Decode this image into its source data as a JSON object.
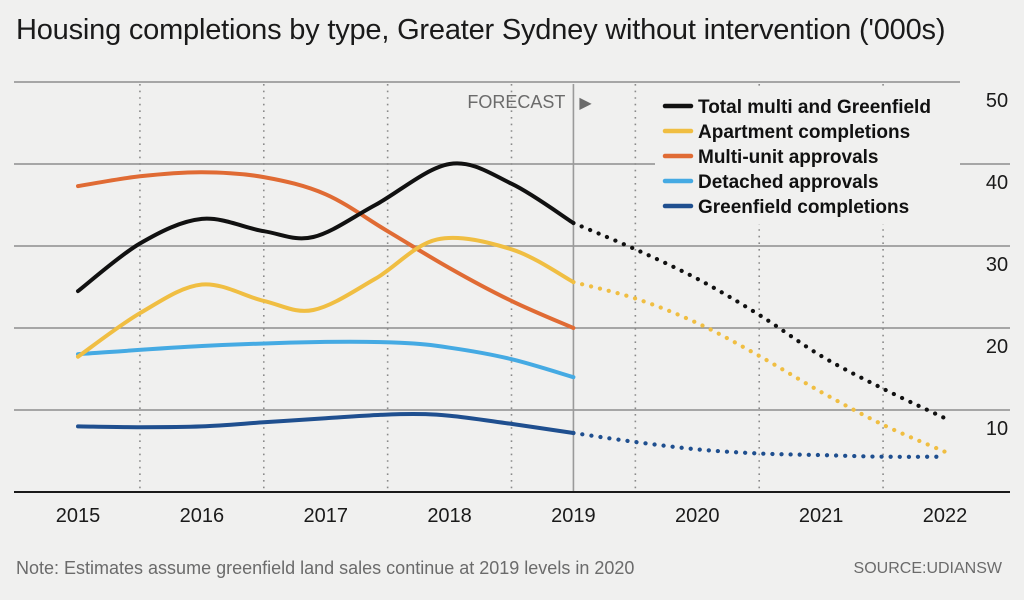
{
  "title": "Housing completions by type, Greater Sydney without intervention ('000s)",
  "note": "Note: Estimates assume greenfield land sales continue at 2019 levels in 2020",
  "source": "SOURCE:UDIANSW",
  "chart_data": {
    "type": "line",
    "title": "Housing completions by type, Greater Sydney without intervention ('000s)",
    "xlabel": "",
    "ylabel": "",
    "x": [
      2015,
      2016,
      2017,
      2018,
      2019,
      2020,
      2021,
      2022
    ],
    "x_tick_labels": [
      "2015",
      "2016",
      "2017",
      "2018",
      "2019",
      "2020",
      "2021",
      "2022"
    ],
    "ylim": [
      0,
      50
    ],
    "y_ticks": [
      10,
      20,
      30,
      40,
      50
    ],
    "y_tick_labels": [
      "10",
      "20",
      "30",
      "40",
      "50"
    ],
    "forecast_start": 2019,
    "forecast_label": "FORECAST",
    "forecast_arrow": "▶",
    "legend_position": "top-right",
    "series": [
      {
        "name": "Total multi and Greenfield",
        "color": "#111111",
        "actual": [
          [
            2015,
            24.5
          ],
          [
            2015.5,
            30.3
          ],
          [
            2016,
            33.3
          ],
          [
            2016.5,
            31.8
          ],
          [
            2016.9,
            31.1
          ],
          [
            2017.4,
            35.0
          ],
          [
            2018,
            40.0
          ],
          [
            2018.5,
            37.6
          ],
          [
            2019,
            32.8
          ]
        ],
        "forecast": [
          [
            2019,
            32.8
          ],
          [
            2019.5,
            29.6
          ],
          [
            2020,
            26.0
          ],
          [
            2020.5,
            21.6
          ],
          [
            2021,
            16.6
          ],
          [
            2021.5,
            12.6
          ],
          [
            2022,
            9.0
          ]
        ]
      },
      {
        "name": "Apartment completions",
        "color": "#f0be42",
        "actual": [
          [
            2015,
            16.5
          ],
          [
            2015.5,
            21.8
          ],
          [
            2016,
            25.3
          ],
          [
            2016.5,
            23.3
          ],
          [
            2016.9,
            22.2
          ],
          [
            2017.4,
            26.0
          ],
          [
            2017.9,
            30.8
          ],
          [
            2018.5,
            29.6
          ],
          [
            2019,
            25.6
          ]
        ],
        "forecast": [
          [
            2019,
            25.6
          ],
          [
            2019.5,
            23.6
          ],
          [
            2020,
            20.6
          ],
          [
            2020.5,
            16.6
          ],
          [
            2021,
            12.2
          ],
          [
            2021.5,
            8.2
          ],
          [
            2022,
            4.9
          ]
        ]
      },
      {
        "name": "Multi-unit approvals",
        "color": "#e06b34",
        "actual": [
          [
            2015,
            37.3
          ],
          [
            2015.5,
            38.5
          ],
          [
            2016,
            39.0
          ],
          [
            2016.5,
            38.4
          ],
          [
            2017,
            36.3
          ],
          [
            2017.5,
            31.8
          ],
          [
            2018,
            27.3
          ],
          [
            2018.5,
            23.3
          ],
          [
            2019,
            20.0
          ]
        ],
        "forecast": []
      },
      {
        "name": "Detached approvals",
        "color": "#45aae3",
        "actual": [
          [
            2015,
            16.8
          ],
          [
            2016,
            17.8
          ],
          [
            2017,
            18.3
          ],
          [
            2017.6,
            18.2
          ],
          [
            2018,
            17.6
          ],
          [
            2018.5,
            16.2
          ],
          [
            2019,
            14.0
          ]
        ],
        "forecast": []
      },
      {
        "name": "Greenfield completions",
        "color": "#1f4f8f",
        "actual": [
          [
            2015,
            8.0
          ],
          [
            2015.5,
            7.9
          ],
          [
            2016,
            8.0
          ],
          [
            2016.5,
            8.5
          ],
          [
            2017,
            9.0
          ],
          [
            2017.6,
            9.5
          ],
          [
            2018,
            9.3
          ],
          [
            2018.5,
            8.3
          ],
          [
            2019,
            7.2
          ]
        ],
        "forecast": [
          [
            2019,
            7.2
          ],
          [
            2019.5,
            6.1
          ],
          [
            2020,
            5.2
          ],
          [
            2020.5,
            4.7
          ],
          [
            2021,
            4.5
          ],
          [
            2021.5,
            4.3
          ],
          [
            2022,
            4.3
          ]
        ]
      }
    ]
  }
}
